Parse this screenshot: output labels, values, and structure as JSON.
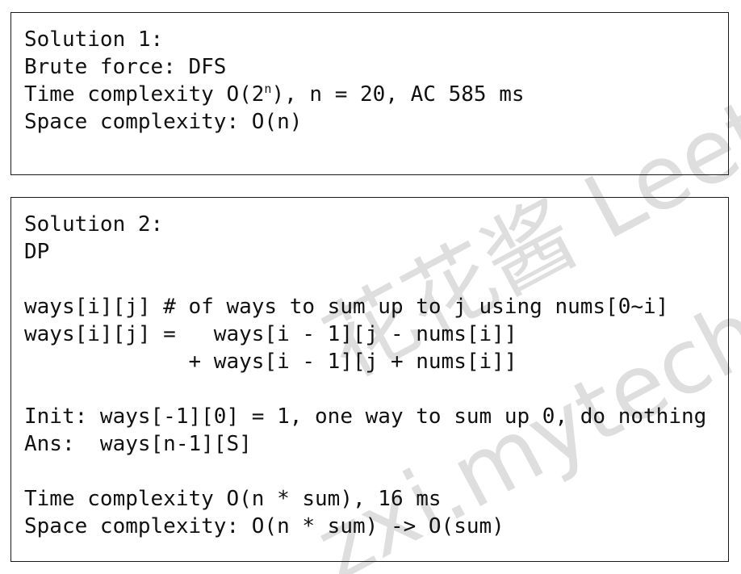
{
  "watermark": {
    "line1": "花花酱 LeetCode",
    "line2": "zxi.mytechroad.com",
    "color": "#d9d9d9"
  },
  "solution1": {
    "lines": [
      "Solution 1:",
      "Brute force: DFS"
    ],
    "time_prefix": "Time complexity O(2",
    "time_sup": "n",
    "time_suffix": "), n = 20, AC 585 ms",
    "space": "Space complexity: O(n)"
  },
  "solution2": {
    "lines": [
      "Solution 2:",
      "DP",
      "",
      "ways[i][j] # of ways to sum up to j using nums[0~i]",
      "ways[i][j] =   ways[i - 1][j - nums[i]]",
      "             + ways[i - 1][j + nums[i]]",
      "",
      "Init: ways[-1][0] = 1, one way to sum up 0, do nothing",
      "Ans:  ways[n-1][S]",
      "",
      "Time complexity O(n * sum), 16 ms",
      "Space complexity: O(n * sum) -> O(sum)"
    ]
  }
}
